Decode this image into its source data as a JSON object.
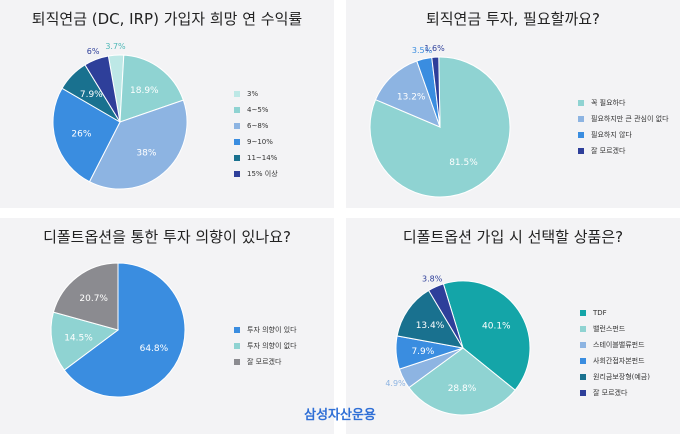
{
  "footer": {
    "logo_text": "삼성자산운용"
  },
  "chart_data": [
    {
      "type": "pie",
      "title": "퇴직연금 (DC, IRP) 가입자 희망 연 수익률",
      "slices": [
        {
          "label": "3%",
          "value": 3.7,
          "display": "3.7%",
          "color": "#bde8e6"
        },
        {
          "label": "4~5%",
          "value": 18.9,
          "display": "18.9%",
          "color": "#8fd3d2"
        },
        {
          "label": "6~8%",
          "value": 38,
          "display": "38%",
          "color": "#8db4e2"
        },
        {
          "label": "9~10%",
          "value": 26,
          "display": "26%",
          "color": "#3a8de0"
        },
        {
          "label": "11~14%",
          "value": 7.9,
          "display": "7.9%",
          "color": "#19718f"
        },
        {
          "label": "15% 이상",
          "value": 6,
          "display": "6%",
          "color": "#2e3f9a"
        }
      ],
      "legend_position": "right"
    },
    {
      "type": "pie",
      "title": "퇴직연금 투자, 필요할까요?",
      "slices": [
        {
          "label": "꼭 필요하다",
          "value": 81.5,
          "display": "81.5%",
          "color": "#8fd3d2"
        },
        {
          "label": "필요하지만 큰 관심이 없다",
          "value": 13.2,
          "display": "13.2%",
          "color": "#8db4e2"
        },
        {
          "label": "필요하지 않다",
          "value": 3.5,
          "display": "3.5%",
          "color": "#3a8de0"
        },
        {
          "label": "잘 모르겠다",
          "value": 1.6,
          "display": "1.6%",
          "color": "#2e3f9a"
        }
      ],
      "legend_position": "right"
    },
    {
      "type": "pie",
      "title": "디폴트옵션을 통한 투자 의향이 있나요?",
      "slices": [
        {
          "label": "투자 의향이 있다",
          "value": 64.8,
          "display": "64.8%",
          "color": "#3a8de0"
        },
        {
          "label": "투자 의향이 없다",
          "value": 14.5,
          "display": "14.5%",
          "color": "#8fd3d2"
        },
        {
          "label": "잘 모르겠다",
          "value": 20.7,
          "display": "20.7%",
          "color": "#8b8b90"
        }
      ],
      "legend_position": "right"
    },
    {
      "type": "pie",
      "title": "디폴트옵션 가입 시 선택할 상품은?",
      "slices": [
        {
          "label": "TDF",
          "value": 40.1,
          "display": "40.1%",
          "color": "#14a5a8"
        },
        {
          "label": "밸런스펀드",
          "value": 28.8,
          "display": "28.8%",
          "color": "#8fd3d2"
        },
        {
          "label": "스테이블밸류펀드",
          "value": 4.9,
          "display": "4.9%",
          "color": "#8db4e2"
        },
        {
          "label": "사회간접자본펀드",
          "value": 7.9,
          "display": "7.9%",
          "color": "#3a8de0"
        },
        {
          "label": "원리금보장형(예금)",
          "value": 13.4,
          "display": "13.4%",
          "color": "#19718f"
        },
        {
          "label": "잘 모르겠다",
          "value": 3.8,
          "display": "3.8%",
          "color": "#2e3f9a"
        }
      ],
      "legend_position": "right"
    }
  ]
}
